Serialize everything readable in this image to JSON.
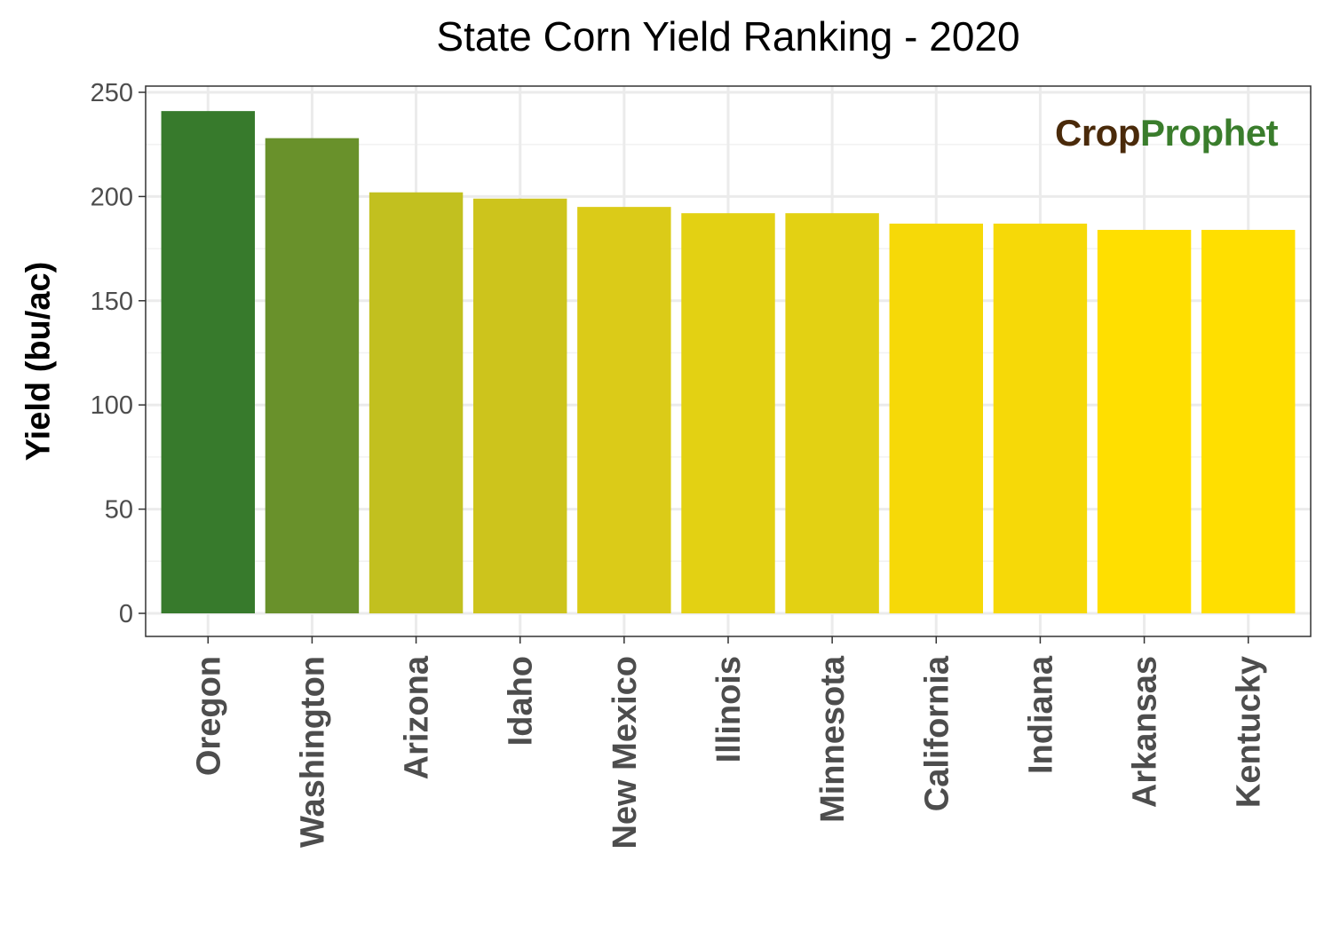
{
  "chart_data": {
    "type": "bar",
    "title": "State Corn Yield Ranking - 2020",
    "xlabel": "",
    "ylabel": "Yield (bu/ac)",
    "categories": [
      "Oregon",
      "Washington",
      "Arizona",
      "Idaho",
      "New Mexico",
      "Illinois",
      "Minnesota",
      "California",
      "Indiana",
      "Arkansas",
      "Kentucky"
    ],
    "values": [
      241,
      228,
      202,
      199,
      195,
      192,
      192,
      187,
      187,
      184,
      184
    ],
    "colors": [
      "#377a2c",
      "#69912b",
      "#c2c01f",
      "#cdc41c",
      "#dbcb18",
      "#e3d113",
      "#e3d113",
      "#f6d908",
      "#f6d908",
      "#ffdf00",
      "#ffdf00"
    ],
    "yticks": [
      0,
      50,
      100,
      150,
      200,
      250
    ],
    "ylim": [
      -12,
      253
    ],
    "grid": true,
    "legend": "none"
  },
  "logo": {
    "part1": "Crop",
    "part2": "Prophet",
    "color1": "#4a2a0a",
    "color2": "#3a7d2c"
  }
}
